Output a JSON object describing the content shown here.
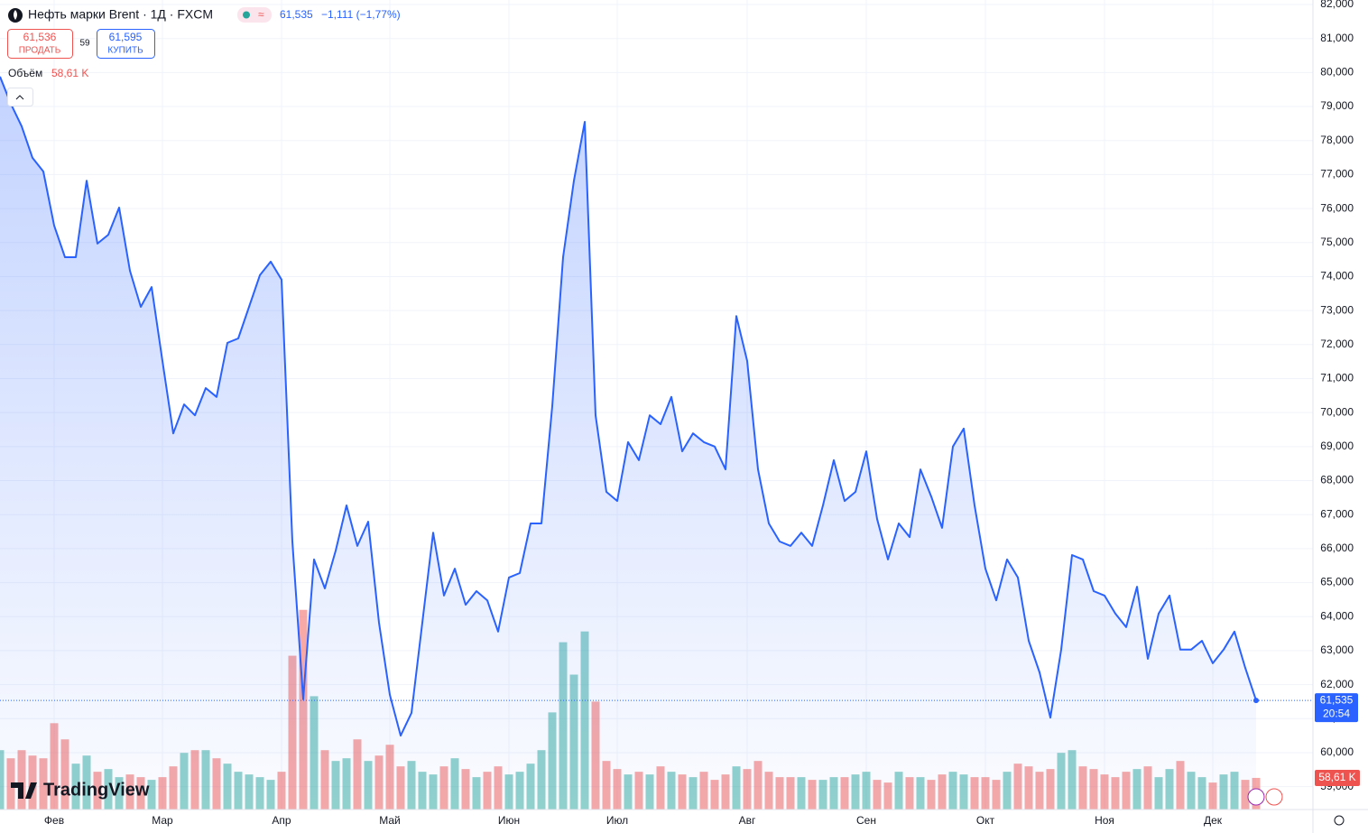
{
  "header": {
    "symbol": "Нефть марки Brent · 1Д · FXCM",
    "last": "61,535",
    "change": "−1,111 (−1,77%)",
    "sell_price": "61,536",
    "sell": "ПРОДАТЬ",
    "spread": "59",
    "buy_price": "61,595",
    "buy": "КУПИТЬ"
  },
  "logo": "TradingView",
  "chart_data": {
    "type": "line",
    "grid": true,
    "ylim": [
      58.327,
      82.133
    ],
    "vlim": [
      0,
      1500000
    ],
    "yticks": [
      {
        "value": 59,
        "label": "59,000"
      },
      {
        "value": 60,
        "label": "60,000"
      },
      {
        "value": 61,
        "label": "61,000"
      },
      {
        "value": 62,
        "label": "62,000"
      },
      {
        "value": 63,
        "label": "63,000"
      },
      {
        "value": 64,
        "label": "64,000"
      },
      {
        "value": 65,
        "label": "65,000"
      },
      {
        "value": 66,
        "label": "66,000"
      },
      {
        "value": 67,
        "label": "67,000"
      },
      {
        "value": 68,
        "label": "68,000"
      },
      {
        "value": 69,
        "label": "69,000"
      },
      {
        "value": 70,
        "label": "70,000"
      },
      {
        "value": 71,
        "label": "71,000"
      },
      {
        "value": 72,
        "label": "72,000"
      },
      {
        "value": 73,
        "label": "73,000"
      },
      {
        "value": 74,
        "label": "74,000"
      },
      {
        "value": 75,
        "label": "75,000"
      },
      {
        "value": 76,
        "label": "76,000"
      },
      {
        "value": 77,
        "label": "77,000"
      },
      {
        "value": 78,
        "label": "78,000"
      },
      {
        "value": 79,
        "label": "79,000"
      },
      {
        "value": 80,
        "label": "80,000"
      },
      {
        "value": 81,
        "label": "81,000"
      },
      {
        "value": 82,
        "label": "82,000"
      }
    ],
    "categories": [
      null,
      null,
      null,
      null,
      null,
      "Фев",
      null,
      null,
      null,
      null,
      null,
      null,
      null,
      null,
      null,
      "Мар",
      null,
      null,
      null,
      null,
      null,
      null,
      null,
      null,
      null,
      null,
      "Апр",
      null,
      null,
      null,
      null,
      null,
      null,
      null,
      null,
      null,
      "Май",
      null,
      null,
      null,
      null,
      null,
      null,
      null,
      null,
      null,
      null,
      "Июн",
      null,
      null,
      null,
      null,
      null,
      null,
      null,
      null,
      null,
      "Июл",
      null,
      null,
      null,
      null,
      null,
      null,
      null,
      null,
      null,
      null,
      null,
      "Авг",
      null,
      null,
      null,
      null,
      null,
      null,
      null,
      null,
      null,
      null,
      "Сен",
      null,
      null,
      null,
      null,
      null,
      null,
      null,
      null,
      null,
      null,
      "Окт",
      null,
      null,
      null,
      null,
      null,
      null,
      null,
      null,
      null,
      null,
      "Ноя",
      null,
      null,
      null,
      null,
      null,
      null,
      null,
      null,
      null,
      "Дек",
      null,
      null,
      null,
      null
    ],
    "series": [
      {
        "color": "#2962ff",
        "last_label": "61,535",
        "countdown": "20:54",
        "values": [
          79.88,
          79.08,
          78.42,
          77.49,
          77.09,
          75.5,
          74.57,
          74.57,
          76.82,
          74.97,
          75.23,
          76.03,
          74.17,
          73.11,
          73.69,
          71.52,
          69.39,
          70.24,
          69.92,
          70.72,
          70.46,
          72.05,
          72.18,
          73.11,
          74.04,
          74.44,
          73.91,
          66.21,
          61.57,
          65.68,
          64.83,
          65.94,
          67.27,
          66.08,
          66.79,
          63.82,
          61.7,
          60.5,
          61.17,
          63.82,
          66.47,
          64.62,
          65.41,
          64.35,
          64.75,
          64.48,
          63.56,
          65.15,
          65.28,
          66.74,
          66.74,
          70.19,
          74.57,
          76.82,
          78.55,
          69.92,
          67.67,
          67.4,
          69.13,
          68.6,
          69.92,
          69.66,
          70.46,
          68.86,
          69.39,
          69.13,
          69.0,
          68.33,
          72.84,
          71.52,
          68.33,
          66.74,
          66.21,
          66.08,
          66.47,
          66.08,
          67.27,
          68.6,
          67.4,
          67.67,
          68.86,
          66.87,
          65.68,
          66.74,
          66.34,
          68.33,
          67.53,
          66.61,
          69.0,
          69.53,
          67.27,
          65.41,
          64.48,
          65.68,
          65.15,
          63.29,
          62.36,
          61.03,
          63.03,
          65.81,
          65.68,
          64.75,
          64.62,
          64.09,
          63.69,
          64.88,
          62.76,
          64.09,
          64.62,
          63.03,
          63.03,
          63.29,
          62.63,
          63.03,
          63.56,
          62.49,
          61.535
        ]
      },
      {
        "name": "Объём",
        "axis": "volume",
        "up_color": "#26a69a",
        "down_color": "#ef5350",
        "last_label": "58,61 K",
        "values": [
          110000,
          95000,
          110000,
          100000,
          95000,
          160000,
          130000,
          85000,
          100000,
          70000,
          75000,
          60000,
          65000,
          60000,
          55000,
          60000,
          80000,
          105000,
          110000,
          110000,
          95000,
          85000,
          70000,
          65000,
          60000,
          55000,
          70000,
          285000,
          370000,
          210000,
          110000,
          90000,
          95000,
          130000,
          90000,
          100000,
          120000,
          80000,
          90000,
          70000,
          65000,
          80000,
          95000,
          75000,
          60000,
          70000,
          80000,
          65000,
          70000,
          85000,
          110000,
          180000,
          310000,
          250000,
          330000,
          200000,
          90000,
          75000,
          65000,
          70000,
          65000,
          80000,
          70000,
          65000,
          60000,
          70000,
          55000,
          65000,
          80000,
          75000,
          90000,
          70000,
          60000,
          60000,
          60000,
          55000,
          55000,
          60000,
          60000,
          65000,
          70000,
          55000,
          50000,
          70000,
          60000,
          60000,
          55000,
          65000,
          70000,
          65000,
          60000,
          60000,
          55000,
          70000,
          85000,
          80000,
          70000,
          75000,
          105000,
          110000,
          80000,
          75000,
          65000,
          60000,
          70000,
          75000,
          80000,
          60000,
          75000,
          90000,
          70000,
          60000,
          50000,
          65000,
          70000,
          55000,
          58610
        ]
      }
    ]
  }
}
